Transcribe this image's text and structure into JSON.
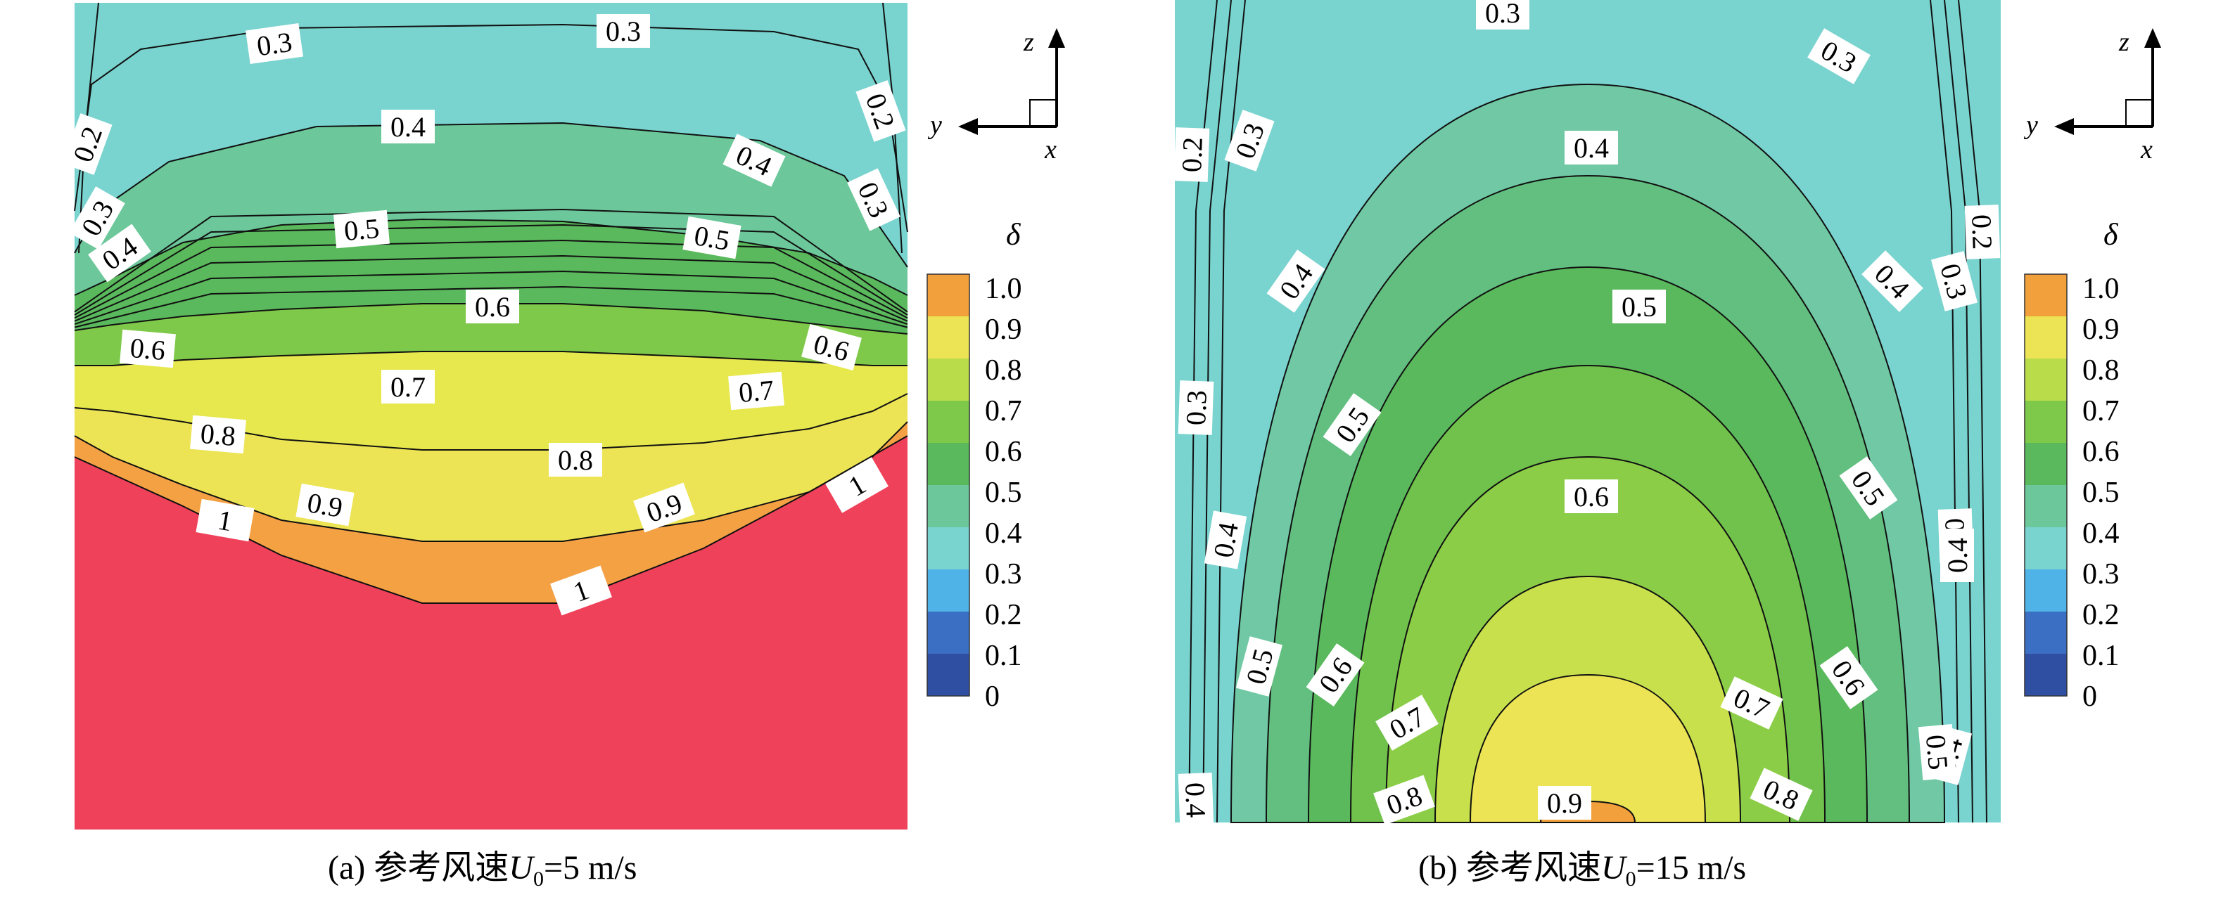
{
  "colors": {
    "levels": [
      {
        "value": 0,
        "color": "#2f4fa3"
      },
      {
        "value": 0.1,
        "color": "#3b6fc4"
      },
      {
        "value": 0.2,
        "color": "#4fb3e8"
      },
      {
        "value": 0.3,
        "color": "#79d3cf"
      },
      {
        "value": 0.4,
        "color": "#6cc79a"
      },
      {
        "value": 0.5,
        "color": "#5ab95c"
      },
      {
        "value": 0.6,
        "color": "#7fc94a"
      },
      {
        "value": 0.7,
        "color": "#b9dc4a"
      },
      {
        "value": 0.8,
        "color": "#ece454"
      },
      {
        "value": 0.9,
        "color": "#f2a03c"
      },
      {
        "value": 1.0,
        "color": "#f0405a"
      }
    ]
  },
  "chart_data": [
    {
      "type": "contour",
      "panel": "a",
      "caption_prefix": "(a) 参考风速",
      "caption_symbol": "U",
      "caption_subscript": "0",
      "caption_suffix": "=5 m/s",
      "axis_labels": {
        "z": "z",
        "y": "y",
        "x": "x"
      },
      "colorbar_title": "δ",
      "colorbar_ticks": [
        "1.0",
        "0.9",
        "0.8",
        "0.7",
        "0.6",
        "0.5",
        "0.4",
        "0.3",
        "0.2",
        "0.1",
        "0"
      ],
      "contour_values": [
        0.2,
        0.3,
        0.4,
        0.5,
        0.6,
        0.7,
        0.8,
        0.9,
        1
      ],
      "contour_labels": [
        "0.3",
        "0.3",
        "0.2",
        "0.2",
        "0.4",
        "0.4",
        "0.3",
        "0.3",
        "0.4",
        "0.5",
        "0.5",
        "0.6",
        "0.6",
        "0.6",
        "0.7",
        "0.7",
        "0.8",
        "0.8",
        "0.9",
        "0.9",
        "1",
        "1",
        "1"
      ]
    },
    {
      "type": "contour",
      "panel": "b",
      "caption_prefix": "(b) 参考风速",
      "caption_symbol": "U",
      "caption_subscript": "0",
      "caption_suffix": "=15 m/s",
      "axis_labels": {
        "z": "z",
        "y": "y",
        "x": "x"
      },
      "colorbar_title": "δ",
      "colorbar_ticks": [
        "1.0",
        "0.9",
        "0.8",
        "0.7",
        "0.6",
        "0.5",
        "0.4",
        "0.3",
        "0.2",
        "0.1",
        "0"
      ],
      "contour_values": [
        0.2,
        0.3,
        0.4,
        0.5,
        0.6,
        0.7,
        0.8,
        0.9
      ],
      "contour_labels": [
        "0.3",
        "0.3",
        "0.2",
        "0.3",
        "0.4",
        "0.2",
        "0.3",
        "0.4",
        "0.4",
        "0.5",
        "0.3",
        "0.5",
        "0.5",
        "0.6",
        "0.4",
        "0.3",
        "0.4",
        "0.5",
        "0.6",
        "0.6",
        "0.7",
        "0.7",
        "0.4",
        "0.8",
        "0.8",
        "0.5",
        "0.4",
        "0.9"
      ]
    }
  ]
}
